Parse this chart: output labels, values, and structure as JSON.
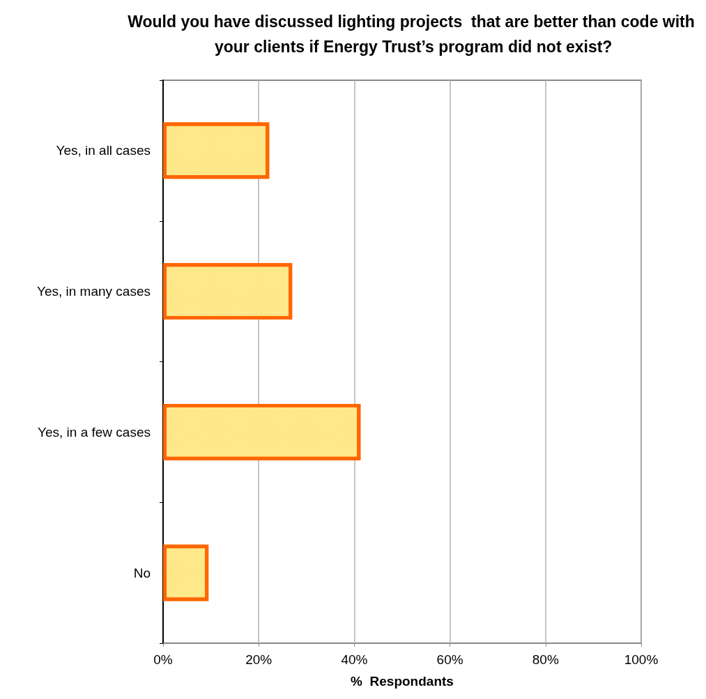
{
  "chart_data": {
    "type": "bar",
    "orientation": "horizontal",
    "title": "Would you have discussed lighting projects  that are better than code with your clients if Energy Trust’s program did not exist?",
    "xlabel": "%  Respondants",
    "categories": [
      "Yes, in all cases",
      "Yes, in many cases",
      "Yes, in a few cases",
      "No"
    ],
    "values": [
      22.2,
      27.0,
      41.3,
      9.5
    ],
    "color": "#ff6600",
    "xlim": [
      0,
      100
    ],
    "xticks": [
      {
        "value": 0,
        "label": "0%"
      },
      {
        "value": 20,
        "label": "20%"
      },
      {
        "value": 40,
        "label": "40%"
      },
      {
        "value": 60,
        "label": "60%"
      },
      {
        "value": 80,
        "label": "80%"
      },
      {
        "value": 100,
        "label": "100%"
      }
    ],
    "grid": "x"
  }
}
